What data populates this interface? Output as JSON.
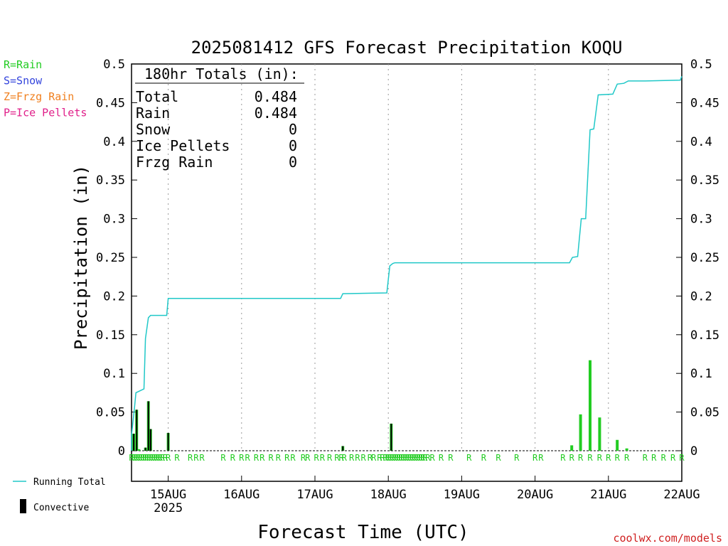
{
  "chart_data": {
    "type": "bar",
    "title": "2025081412 GFS Forecast Precipitation KOQU",
    "xlabel": "Forecast Time (UTC)",
    "ylabel": "Precipitation (in)",
    "ylim": [
      0,
      0.5
    ],
    "yticks": [
      "0",
      "0.05",
      "0.1",
      "0.15",
      "0.2",
      "0.25",
      "0.3",
      "0.35",
      "0.4",
      "0.45",
      "0.5"
    ],
    "xrange_days": [
      14.5,
      22.0
    ],
    "xticks": [
      {
        "day": 15,
        "label": "15AUG",
        "sub": "2025"
      },
      {
        "day": 16,
        "label": "16AUG",
        "sub": ""
      },
      {
        "day": 17,
        "label": "17AUG",
        "sub": ""
      },
      {
        "day": 18,
        "label": "18AUG",
        "sub": ""
      },
      {
        "day": 19,
        "label": "19AUG",
        "sub": ""
      },
      {
        "day": 20,
        "label": "20AUG",
        "sub": ""
      },
      {
        "day": 21,
        "label": "21AUG",
        "sub": ""
      },
      {
        "day": 22,
        "label": "22AUG",
        "sub": ""
      }
    ],
    "precip_type_legend": [
      {
        "text": "R=Rain",
        "color": "#22cc22"
      },
      {
        "text": "S=Snow",
        "color": "#3344dd"
      },
      {
        "text": "Z=Frzg Rain",
        "color": "#f08020"
      },
      {
        "text": "P=Ice Pellets",
        "color": "#e0208a"
      }
    ],
    "totals_box": {
      "header": "180hr Totals (in):",
      "rows": [
        {
          "label": "Total",
          "value": "0.484"
        },
        {
          "label": "Rain",
          "value": "0.484"
        },
        {
          "label": "Snow",
          "value": "0"
        },
        {
          "label": "Ice Pellets",
          "value": "0"
        },
        {
          "label": "Frzg Rain",
          "value": "0"
        }
      ]
    },
    "series": [
      {
        "name": "Running Total",
        "kind": "line",
        "color": "#20c8c8",
        "x": [
          14.5,
          14.5,
          14.54,
          14.56,
          14.67,
          14.69,
          14.73,
          14.76,
          14.79,
          14.98,
          15.0,
          16.0,
          17.0,
          17.35,
          17.38,
          17.98,
          18.02,
          18.06,
          18.09,
          19.0,
          20.0,
          20.47,
          20.51,
          20.58,
          20.63,
          20.69,
          20.75,
          20.8,
          20.86,
          21.06,
          21.12,
          21.21,
          21.27,
          21.5,
          21.98,
          22.0
        ],
        "y": [
          0,
          0.02,
          0.055,
          0.075,
          0.08,
          0.145,
          0.172,
          0.175,
          0.175,
          0.175,
          0.197,
          0.197,
          0.197,
          0.197,
          0.203,
          0.204,
          0.239,
          0.242,
          0.243,
          0.243,
          0.243,
          0.243,
          0.25,
          0.251,
          0.3,
          0.3,
          0.415,
          0.416,
          0.46,
          0.461,
          0.474,
          0.475,
          0.478,
          0.478,
          0.479,
          0.484
        ]
      },
      {
        "name": "Convective",
        "kind": "bar",
        "color": "#000000",
        "x": [
          14.53,
          14.57,
          14.69,
          14.73,
          14.76,
          15.0,
          17.38,
          18.04
        ],
        "values": [
          0.022,
          0.053,
          0.004,
          0.064,
          0.028,
          0.023,
          0.006,
          0.035
        ]
      },
      {
        "name": "Rain",
        "kind": "bar",
        "color": "#22cc22",
        "x": [
          14.53,
          14.57,
          14.6,
          14.69,
          14.73,
          14.76,
          15.0,
          17.38,
          18.04,
          20.5,
          20.62,
          20.75,
          20.88,
          21.12,
          21.25
        ],
        "values": [
          0.022,
          0.053,
          0.002,
          0.004,
          0.064,
          0.028,
          0.023,
          0.006,
          0.035,
          0.007,
          0.047,
          0.117,
          0.043,
          0.014,
          0.003
        ]
      }
    ],
    "rain_markers_days": [
      14.5,
      14.53,
      14.56,
      14.59,
      14.62,
      14.65,
      14.68,
      14.71,
      14.74,
      14.77,
      14.8,
      14.83,
      14.86,
      14.89,
      14.92,
      14.96,
      15.0,
      15.12,
      15.3,
      15.38,
      15.46,
      15.75,
      15.88,
      16.0,
      16.08,
      16.2,
      16.28,
      16.4,
      16.5,
      16.62,
      16.7,
      16.84,
      16.9,
      17.02,
      17.1,
      17.2,
      17.3,
      17.36,
      17.4,
      17.5,
      17.58,
      17.66,
      17.75,
      17.8,
      17.88,
      17.92,
      17.96,
      17.99,
      18.02,
      18.05,
      18.08,
      18.11,
      18.14,
      18.17,
      18.2,
      18.23,
      18.26,
      18.29,
      18.32,
      18.35,
      18.38,
      18.41,
      18.44,
      18.47,
      18.5,
      18.54,
      18.6,
      18.72,
      18.85,
      19.1,
      19.3,
      19.5,
      19.75,
      20.0,
      20.08,
      20.38,
      20.5,
      20.62,
      20.75,
      20.88,
      21.0,
      21.12,
      21.25,
      21.5,
      21.62,
      21.75,
      21.88,
      22.0
    ],
    "rain_marker_char": "R",
    "bottom_legend": [
      {
        "text": "Running Total",
        "symbol": "line"
      },
      {
        "text": "Convective",
        "symbol": "bar"
      }
    ],
    "credit": "coolwx.com/models"
  }
}
